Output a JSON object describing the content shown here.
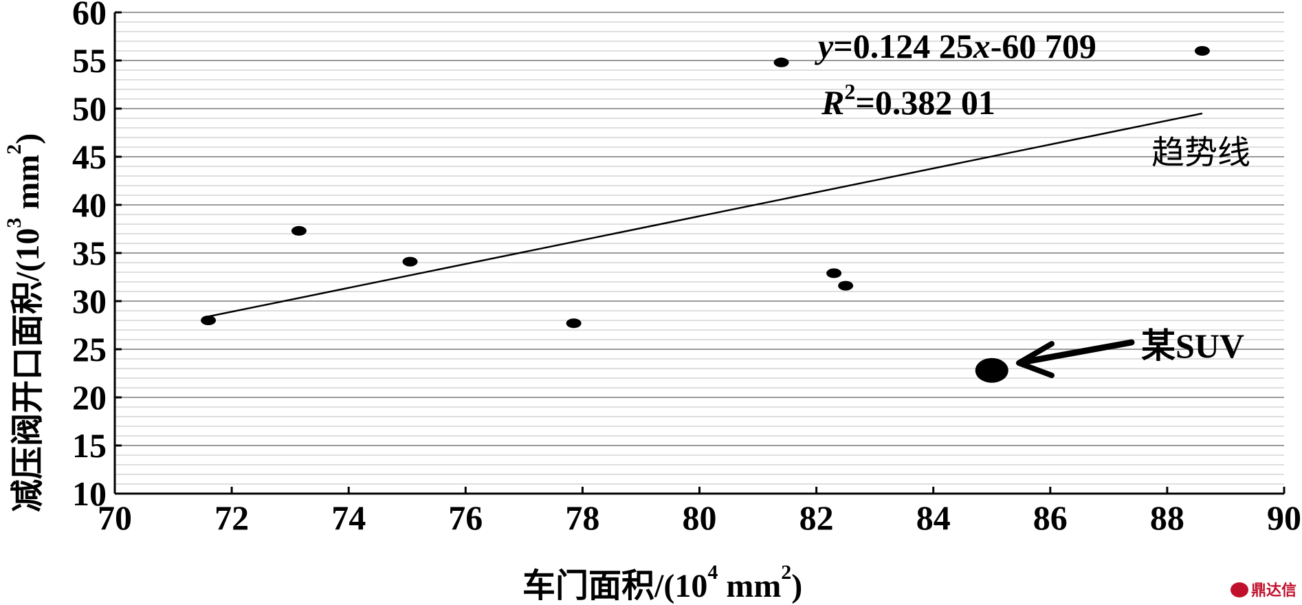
{
  "chart_data": {
    "type": "scatter",
    "xlabel": "车门面积/(10",
    "xlabel_exp": "4",
    "xlabel_unit": " mm",
    "xlabel_unit_exp": "2",
    "xlabel_close": ")",
    "ylabel": "减压阀开口面积/(10",
    "ylabel_exp": "3",
    "ylabel_unit": " mm",
    "ylabel_unit_exp": "2",
    "ylabel_close": ")",
    "xlim": [
      70,
      90
    ],
    "ylim": [
      10,
      60
    ],
    "xticks": [
      "70",
      "72",
      "74",
      "76",
      "78",
      "80",
      "82",
      "84",
      "86",
      "88",
      "90"
    ],
    "yticks": [
      "10",
      "15",
      "20",
      "25",
      "30",
      "35",
      "40",
      "45",
      "50",
      "55",
      "60"
    ],
    "grid": "horizontal",
    "points": [
      {
        "x": 71.6,
        "y": 28.0
      },
      {
        "x": 73.15,
        "y": 37.3
      },
      {
        "x": 75.05,
        "y": 34.1
      },
      {
        "x": 77.85,
        "y": 27.7
      },
      {
        "x": 81.4,
        "y": 54.8
      },
      {
        "x": 82.3,
        "y": 32.9
      },
      {
        "x": 82.5,
        "y": 31.6
      },
      {
        "x": 88.6,
        "y": 56.0
      }
    ],
    "highlight_point": {
      "x": 85.0,
      "y": 22.8,
      "label": "某SUV"
    },
    "trendline": {
      "x_start": 71.6,
      "y_start": 28.4,
      "x_end": 88.6,
      "y_end": 49.5,
      "label": "趋势线",
      "equation_y": "y",
      "equation_rest": "=0.124 25",
      "equation_x": "x",
      "equation_tail": "-60 709",
      "r2_R": "R",
      "r2_exp": "2",
      "r2_rest": "=0.382 01"
    }
  },
  "watermark": {
    "text": "鼎达信",
    "color": "#c0102b"
  }
}
